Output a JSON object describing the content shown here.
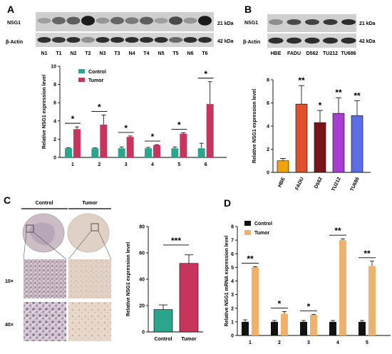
{
  "panel_labels": {
    "A": "A",
    "B": "B",
    "C": "C",
    "D": "D"
  },
  "blot_A": {
    "protein_label": "NSG1",
    "loading_label": "β-Actin",
    "size_protein": "21 kDa",
    "size_loading": "42 kDa",
    "lanes": [
      "N1",
      "T1",
      "N2",
      "T2",
      "N3",
      "T3",
      "N4",
      "T4",
      "N5",
      "T5",
      "N6",
      "T6"
    ]
  },
  "blot_B": {
    "protein_label": "NSG1",
    "loading_label": "β-Actin",
    "size_protein": "21 kDa",
    "size_loading": "42 kDa",
    "lanes": [
      "HBE",
      "FADU",
      "D562",
      "TU212",
      "TU686"
    ]
  },
  "ihc_C": {
    "col_control": "Control",
    "col_tumor": "Tumor",
    "row_10x": "10×",
    "row_40x": "40×"
  },
  "chart_data": [
    {
      "id": "A",
      "type": "bar",
      "ylabel": "Relative  NSG1 expression level",
      "ylim": [
        0,
        10
      ],
      "yticks": [
        0,
        2,
        4,
        6,
        8,
        10
      ],
      "categories": [
        "1",
        "2",
        "3",
        "4",
        "5",
        "6"
      ],
      "legend": "top-left",
      "series": [
        {
          "name": "Control",
          "color": "#2ca58d",
          "values": [
            1.0,
            1.0,
            1.0,
            1.0,
            1.0,
            1.0
          ],
          "errors": [
            0.05,
            0.05,
            0.15,
            0.1,
            0.15,
            0.55
          ]
        },
        {
          "name": "Tumor",
          "color": "#c8355c",
          "values": [
            3.1,
            3.6,
            2.25,
            1.35,
            2.6,
            5.85
          ],
          "errors": [
            0.25,
            1.05,
            0.1,
            0.05,
            0.1,
            2.45
          ]
        }
      ],
      "annotations": [
        "*",
        "*",
        "*",
        "*",
        "*",
        "*"
      ]
    },
    {
      "id": "B",
      "type": "bar",
      "ylabel": "Relative  NSG1 expression level",
      "ylim": [
        0,
        8
      ],
      "yticks": [
        0,
        2,
        4,
        6,
        8
      ],
      "categories": [
        "HBE",
        "FADU",
        "D562",
        "TU212",
        "TU686"
      ],
      "values": [
        1.0,
        5.9,
        4.3,
        5.1,
        4.9
      ],
      "errors": [
        0.2,
        1.6,
        1.05,
        1.35,
        1.3
      ],
      "colors": [
        "#f0a30a",
        "#e0502b",
        "#7a1418",
        "#a83ecf",
        "#5b6ee8"
      ],
      "annotations": [
        "",
        "**",
        "*",
        "**",
        "**"
      ]
    },
    {
      "id": "C",
      "type": "bar",
      "ylabel": "Relative  NSG1 expression level",
      "ylim": [
        0,
        80
      ],
      "yticks": [
        0,
        20,
        40,
        60,
        80
      ],
      "categories": [
        "Control",
        "Tumor"
      ],
      "values": [
        17,
        52
      ],
      "errors": [
        3.5,
        6.5
      ],
      "colors": [
        "#2ca58d",
        "#c8355c"
      ],
      "annotations": [
        "***"
      ]
    },
    {
      "id": "D",
      "type": "bar",
      "ylabel": "Relative NSG1 mRNA expression level",
      "ylim": [
        0,
        8
      ],
      "yticks": [
        0,
        1,
        2,
        3,
        4,
        5,
        6,
        7,
        8
      ],
      "categories": [
        "1",
        "2",
        "3",
        "4",
        "5"
      ],
      "legend": "top-left",
      "series": [
        {
          "name": "Control",
          "color": "#111111",
          "values": [
            1.0,
            1.0,
            1.0,
            1.0,
            1.0
          ],
          "errors": [
            0.15,
            0.1,
            0.1,
            0.1,
            0.1
          ]
        },
        {
          "name": "Tumor",
          "color": "#f0b26b",
          "values": [
            5.0,
            1.6,
            1.5,
            7.0,
            5.1
          ],
          "errors": [
            0.05,
            0.15,
            0.05,
            0.1,
            0.35
          ]
        }
      ],
      "annotations": [
        "**",
        "*",
        "*",
        "**",
        "**"
      ]
    }
  ]
}
